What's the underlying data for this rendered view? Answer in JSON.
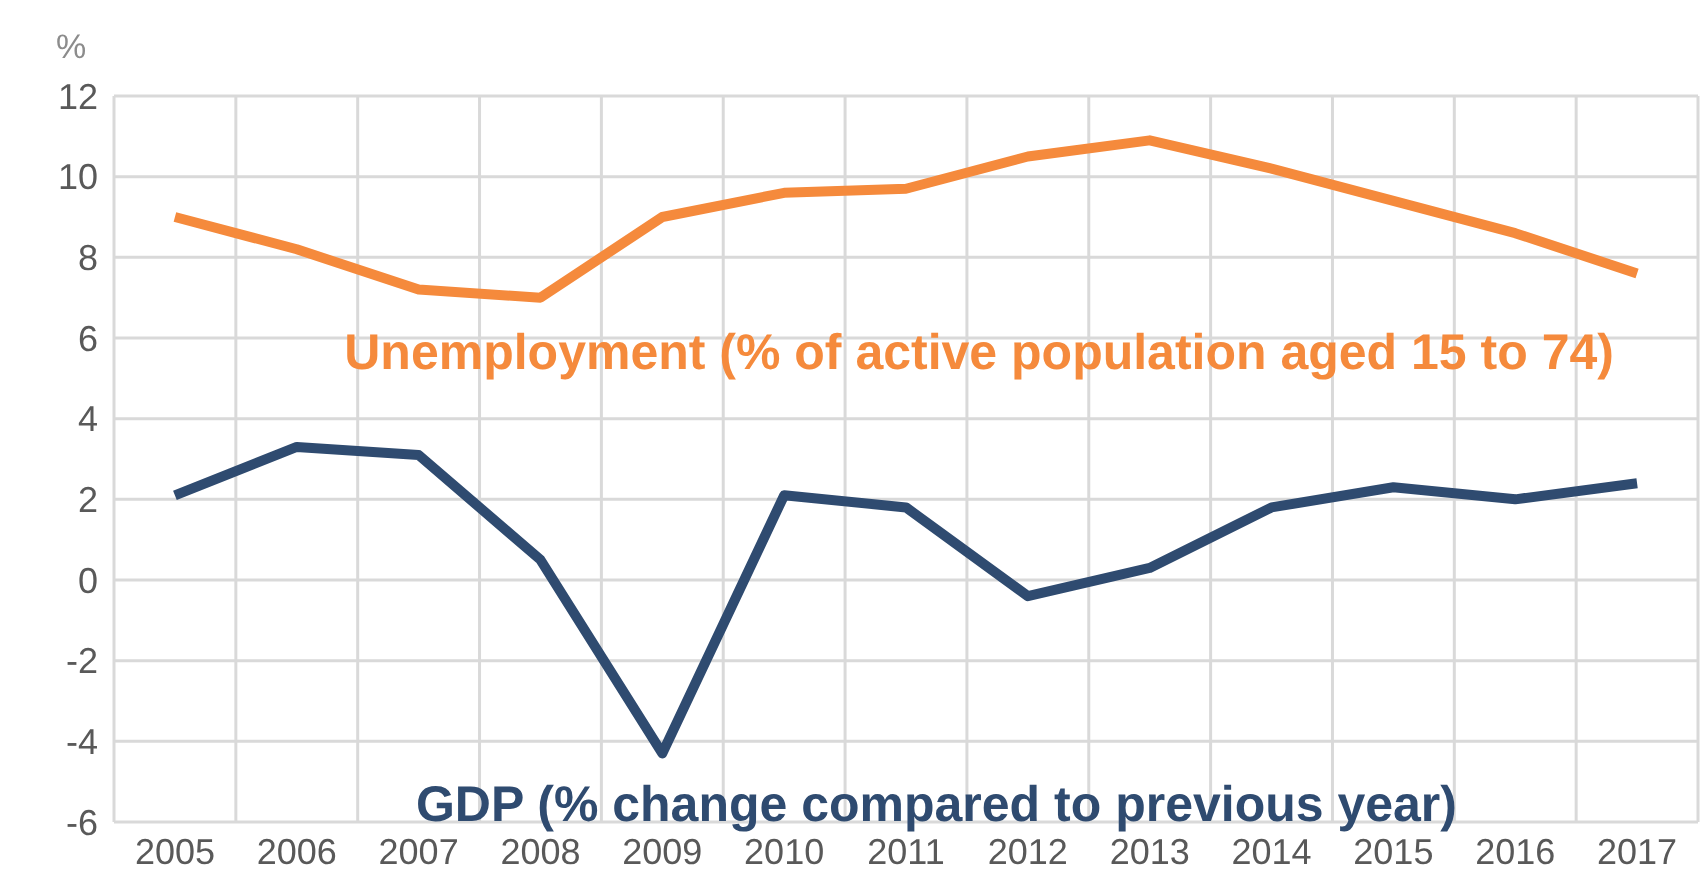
{
  "chart_data": {
    "type": "line",
    "ylabel": "%",
    "categories": [
      "2005",
      "2006",
      "2007",
      "2008",
      "2009",
      "2010",
      "2011",
      "2012",
      "2013",
      "2014",
      "2015",
      "2016",
      "2017"
    ],
    "series": [
      {
        "name": "Unemployment (% of active population aged 15 to 74)",
        "color": "#f58a3c",
        "values": [
          9.0,
          8.2,
          7.2,
          7.0,
          9.0,
          9.6,
          9.7,
          10.5,
          10.9,
          10.2,
          9.4,
          8.6,
          7.6
        ]
      },
      {
        "name": "GDP (% change compared to previous year)",
        "color": "#2f4b70",
        "values": [
          2.1,
          3.3,
          3.1,
          0.5,
          -4.3,
          2.1,
          1.8,
          -0.4,
          0.3,
          1.8,
          2.3,
          2.0,
          2.4
        ]
      }
    ],
    "ylim": [
      -6,
      12
    ],
    "yticks": [
      -6,
      -4,
      -2,
      0,
      2,
      4,
      6,
      8,
      10,
      12
    ],
    "grid": true,
    "legend": false,
    "marker": "none",
    "line_style": "solid"
  }
}
